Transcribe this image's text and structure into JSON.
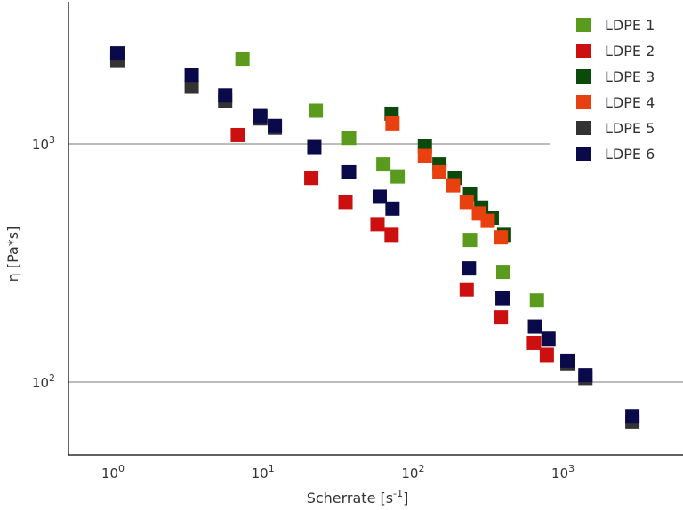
{
  "chart_data": {
    "type": "scatter",
    "title": "",
    "xlabel": "Scherrate [s",
    "xlabel_sup": "-1",
    "xlabel_end": "]",
    "ylabel": "η [Pa*s]",
    "xscale": "log",
    "yscale": "log",
    "xlim": [
      0.52,
      8000
    ],
    "ylim": [
      50,
      5000
    ],
    "grid": "horizontal at y-ticks",
    "legend_position": "top-right",
    "x_ticks": [
      {
        "value": 1,
        "base": "10",
        "exp": "0"
      },
      {
        "value": 10,
        "base": "10",
        "exp": "1"
      },
      {
        "value": 100,
        "base": "10",
        "exp": "2"
      },
      {
        "value": 1000,
        "base": "10",
        "exp": "3"
      }
    ],
    "y_ticks": [
      {
        "value": 100,
        "base": "10",
        "exp": "2"
      },
      {
        "value": 1000,
        "base": "10",
        "exp": "3"
      }
    ],
    "series": [
      {
        "name": "LDPE 1",
        "color": "#5a9a1c",
        "points": [
          [
            7.3,
            2280
          ],
          [
            22.5,
            1380
          ],
          [
            37.5,
            1060
          ],
          [
            63.5,
            820
          ],
          [
            79,
            730
          ],
          [
            240,
            395
          ],
          [
            400,
            290
          ],
          [
            670,
            220
          ]
        ]
      },
      {
        "name": "LDPE 2",
        "color": "#cc1010",
        "points": [
          [
            6.8,
            1090
          ],
          [
            21,
            720
          ],
          [
            35.5,
            570
          ],
          [
            58,
            460
          ],
          [
            72,
            415
          ],
          [
            228,
            245
          ],
          [
            385,
            187
          ],
          [
            640,
            146
          ],
          [
            780,
            130
          ]
        ]
      },
      {
        "name": "LDPE 3",
        "color": "#0c4a0c",
        "points": [
          [
            72,
            1340
          ],
          [
            120,
            980
          ],
          [
            150,
            820
          ],
          [
            190,
            720
          ],
          [
            240,
            615
          ],
          [
            285,
            540
          ],
          [
            335,
            490
          ],
          [
            405,
            415
          ]
        ]
      },
      {
        "name": "LDPE 4",
        "color": "#e8400e",
        "points": [
          [
            73,
            1220
          ],
          [
            120,
            890
          ],
          [
            150,
            760
          ],
          [
            185,
            670
          ],
          [
            228,
            570
          ],
          [
            275,
            510
          ],
          [
            315,
            475
          ],
          [
            385,
            405
          ]
        ]
      },
      {
        "name": "LDPE 5",
        "color": "#333333",
        "points": [
          [
            1.07,
            2250
          ],
          [
            3.35,
            1740
          ],
          [
            5.6,
            1520
          ],
          [
            9.6,
            1280
          ],
          [
            12,
            1170
          ],
          [
            1070,
            120
          ],
          [
            1410,
            104
          ],
          [
            2900,
            68
          ]
        ]
      },
      {
        "name": "LDPE 6",
        "color": "#0a0a4a",
        "points": [
          [
            1.07,
            2400
          ],
          [
            3.35,
            1950
          ],
          [
            5.6,
            1600
          ],
          [
            9.6,
            1310
          ],
          [
            12,
            1190
          ],
          [
            22,
            970
          ],
          [
            37.5,
            760
          ],
          [
            60,
            600
          ],
          [
            73,
            535
          ],
          [
            236,
            300
          ],
          [
            395,
            225
          ],
          [
            650,
            171
          ],
          [
            800,
            152
          ],
          [
            1070,
            123
          ],
          [
            1410,
            107
          ],
          [
            2900,
            72
          ]
        ]
      }
    ]
  }
}
